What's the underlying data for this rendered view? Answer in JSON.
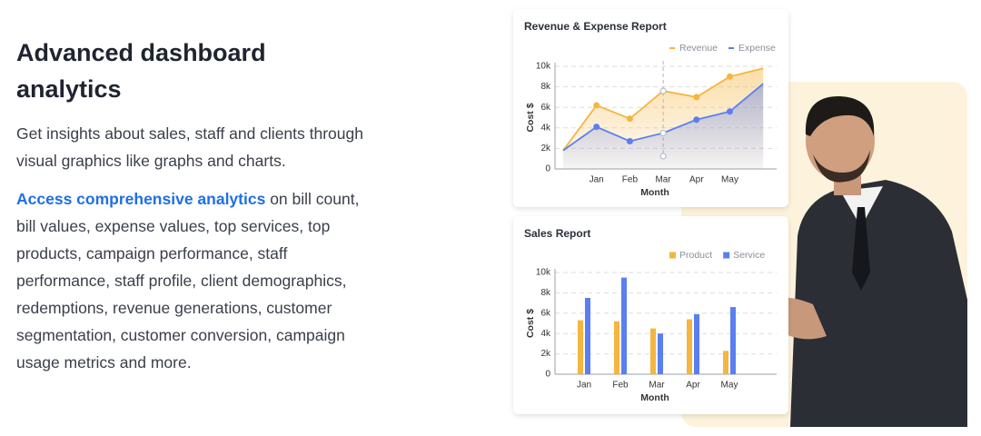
{
  "header": {
    "title": "Advanced dashboard analytics",
    "intro": "Get insights about sales, staff and clients through visual graphics like graphs and charts.",
    "highlight": "Access comprehensive analytics",
    "details": "on bill count, bill values, expense values, top services, top products, campaign performance, staff performance, staff profile, client demographics, redemptions, revenue generations, customer segmentation, customer conversion, campaign usage metrics and more."
  },
  "chart_data": [
    {
      "type": "line",
      "title": "Revenue & Expense Report",
      "x_label": "Month",
      "y_label": "Cost $",
      "categories": [
        null,
        "Jan",
        "Feb",
        "Mar",
        "Apr",
        "May",
        null
      ],
      "series": [
        {
          "name": "Revenue",
          "color": "#f5b53f",
          "values": [
            1800,
            6200,
            4900,
            7600,
            7000,
            9000,
            9800
          ]
        },
        {
          "name": "Expense",
          "color": "#5b7ff0",
          "values": [
            1800,
            4100,
            2700,
            3500,
            4800,
            5600,
            8300
          ]
        }
      ],
      "ylim": [
        0,
        10000
      ],
      "yticks": [
        0,
        {
          "value": 2000,
          "label": "2k"
        },
        {
          "value": 4000,
          "label": "4k"
        },
        {
          "value": 6000,
          "label": "6k"
        },
        {
          "value": 8000,
          "label": "8k"
        },
        {
          "value": 10000,
          "label": "10k"
        }
      ],
      "grid": true
    },
    {
      "type": "bar",
      "title": "Sales Report",
      "x_label": "Month",
      "y_label": "Cost $",
      "categories": [
        "Jan",
        "Feb",
        "Mar",
        "Apr",
        "May"
      ],
      "series": [
        {
          "name": "Product",
          "color": "#f5b53f",
          "values": [
            5300,
            5200,
            4500,
            5400,
            2300
          ]
        },
        {
          "name": "Service",
          "color": "#5b7ff0",
          "values": [
            7500,
            9500,
            4000,
            5900,
            6600
          ]
        }
      ],
      "ylim": [
        0,
        10000
      ],
      "yticks": [
        0,
        {
          "value": 2000,
          "label": "2k"
        },
        {
          "value": 4000,
          "label": "4k"
        },
        {
          "value": 6000,
          "label": "6k"
        },
        {
          "value": 8000,
          "label": "8k"
        },
        {
          "value": 10000,
          "label": "10k"
        }
      ],
      "grid": true
    }
  ]
}
